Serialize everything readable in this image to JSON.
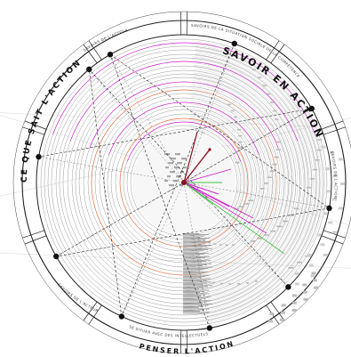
{
  "outer_labels": {
    "top_right": "SAVOIR EN ACTION",
    "left": "CE QUE SAIT L'ACTION",
    "bottom": "PENSER L'ACTION"
  },
  "inner_labels": {
    "top_left": "SAVOIRS DE L'ACTEUR",
    "top_center": "SAVOIRS DE LA SITUATION SOCIALE DE LA COMPÉTENCE",
    "bottom_center": "SE SITUER AVEC DES INTELLECTUELS",
    "bottom_left": "SAVOIRS DE L'ACTEUR",
    "right": "SAVOIRS DE L'ACTION"
  },
  "colors": {
    "ring": "#9a9a9a",
    "accent_orange": "#e07040",
    "accent_magenta": "#d020d0",
    "accent_green": "#40c040",
    "accent_darkred": "#8a1020",
    "node": "#111111",
    "background": "#ffffff"
  }
}
